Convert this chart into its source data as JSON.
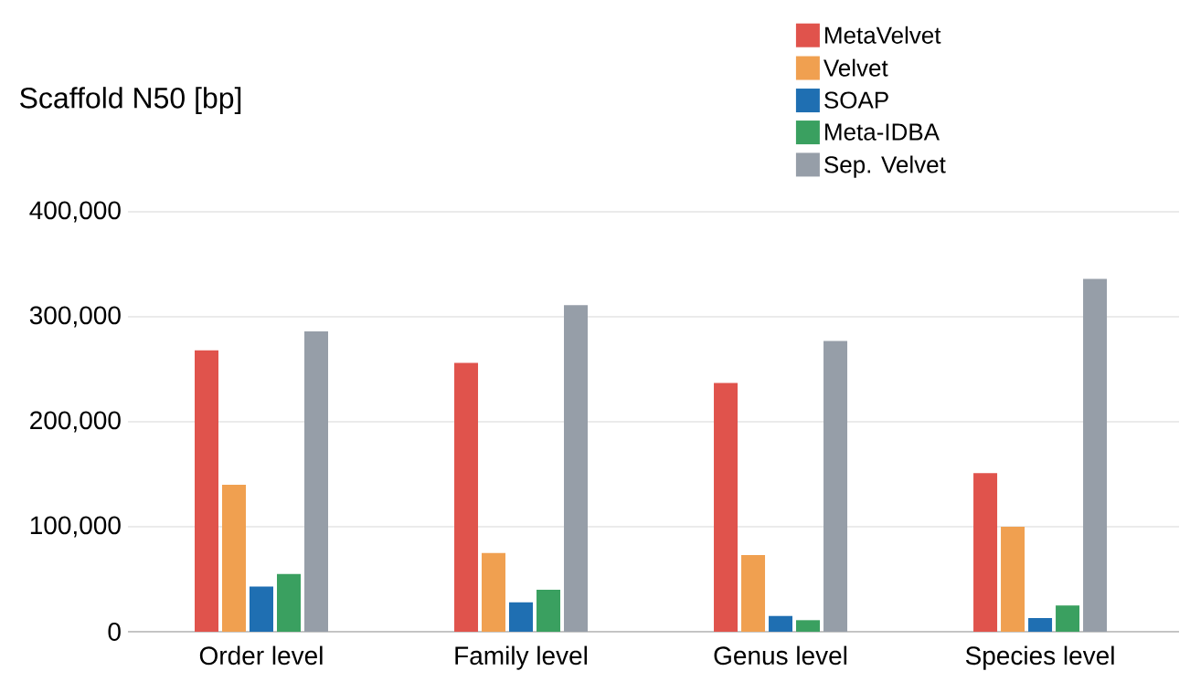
{
  "chart_data": {
    "type": "bar",
    "ylabel": "Scaffold N50 [bp]",
    "categories": [
      "Order level",
      "Family level",
      "Genus level",
      "Species level"
    ],
    "series": [
      {
        "name": "MetaVelvet",
        "color": "#e0534c",
        "values": [
          268000,
          256000,
          237000,
          151000
        ]
      },
      {
        "name": "Velvet",
        "color": "#f0a050",
        "values": [
          140000,
          75000,
          73000,
          100000
        ]
      },
      {
        "name": "SOAP",
        "color": "#1f6fb2",
        "values": [
          43000,
          28000,
          15000,
          13000
        ]
      },
      {
        "name": "Meta-IDBA",
        "color": "#3aa060",
        "values": [
          55000,
          40000,
          11000,
          25000
        ]
      },
      {
        "name": "Sep. Velvet",
        "color": "#969ea8",
        "values": [
          286000,
          311000,
          277000,
          336000
        ]
      }
    ],
    "ylim": [
      0,
      400000
    ],
    "yticks": [
      0,
      {
        "value": 100000,
        "label": "100,000"
      },
      {
        "value": 200000,
        "label": "200,000"
      },
      {
        "value": 300000,
        "label": "300,000"
      },
      {
        "value": 400000,
        "label": "400,000"
      }
    ],
    "grid": "y",
    "legend": "top right"
  }
}
